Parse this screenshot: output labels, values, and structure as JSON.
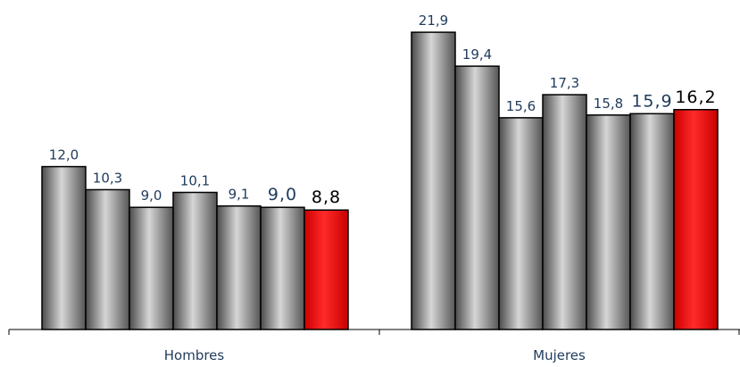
{
  "chart_data": {
    "type": "bar",
    "categories": [
      "Hombres",
      "Mujeres"
    ],
    "series": [
      {
        "values": [
          12.0,
          21.9
        ],
        "labels": [
          "12,0",
          "21,9"
        ],
        "color": "#808080"
      },
      {
        "values": [
          10.3,
          19.4
        ],
        "labels": [
          "10,3",
          "19,4"
        ],
        "color": "#808080"
      },
      {
        "values": [
          9.0,
          15.6
        ],
        "labels": [
          "9,0",
          "15,6"
        ],
        "color": "#808080"
      },
      {
        "values": [
          10.1,
          17.3
        ],
        "labels": [
          "10,1",
          "17,3"
        ],
        "color": "#808080"
      },
      {
        "values": [
          9.1,
          15.8
        ],
        "labels": [
          "9,1",
          "15,8"
        ],
        "color": "#808080"
      },
      {
        "values": [
          9.0,
          15.9
        ],
        "labels": [
          "9,0",
          "15,9"
        ],
        "color": "#808080"
      },
      {
        "values": [
          8.8,
          16.2
        ],
        "labels": [
          "8,8",
          "16,2"
        ],
        "color": "#ff0000"
      }
    ],
    "title": "",
    "xlabel": "",
    "ylabel": "",
    "ylim": [
      0,
      22.5
    ],
    "grid": false,
    "legend": "none",
    "label_color": "#1f3b5c",
    "highlight_label_color": "#000000"
  }
}
